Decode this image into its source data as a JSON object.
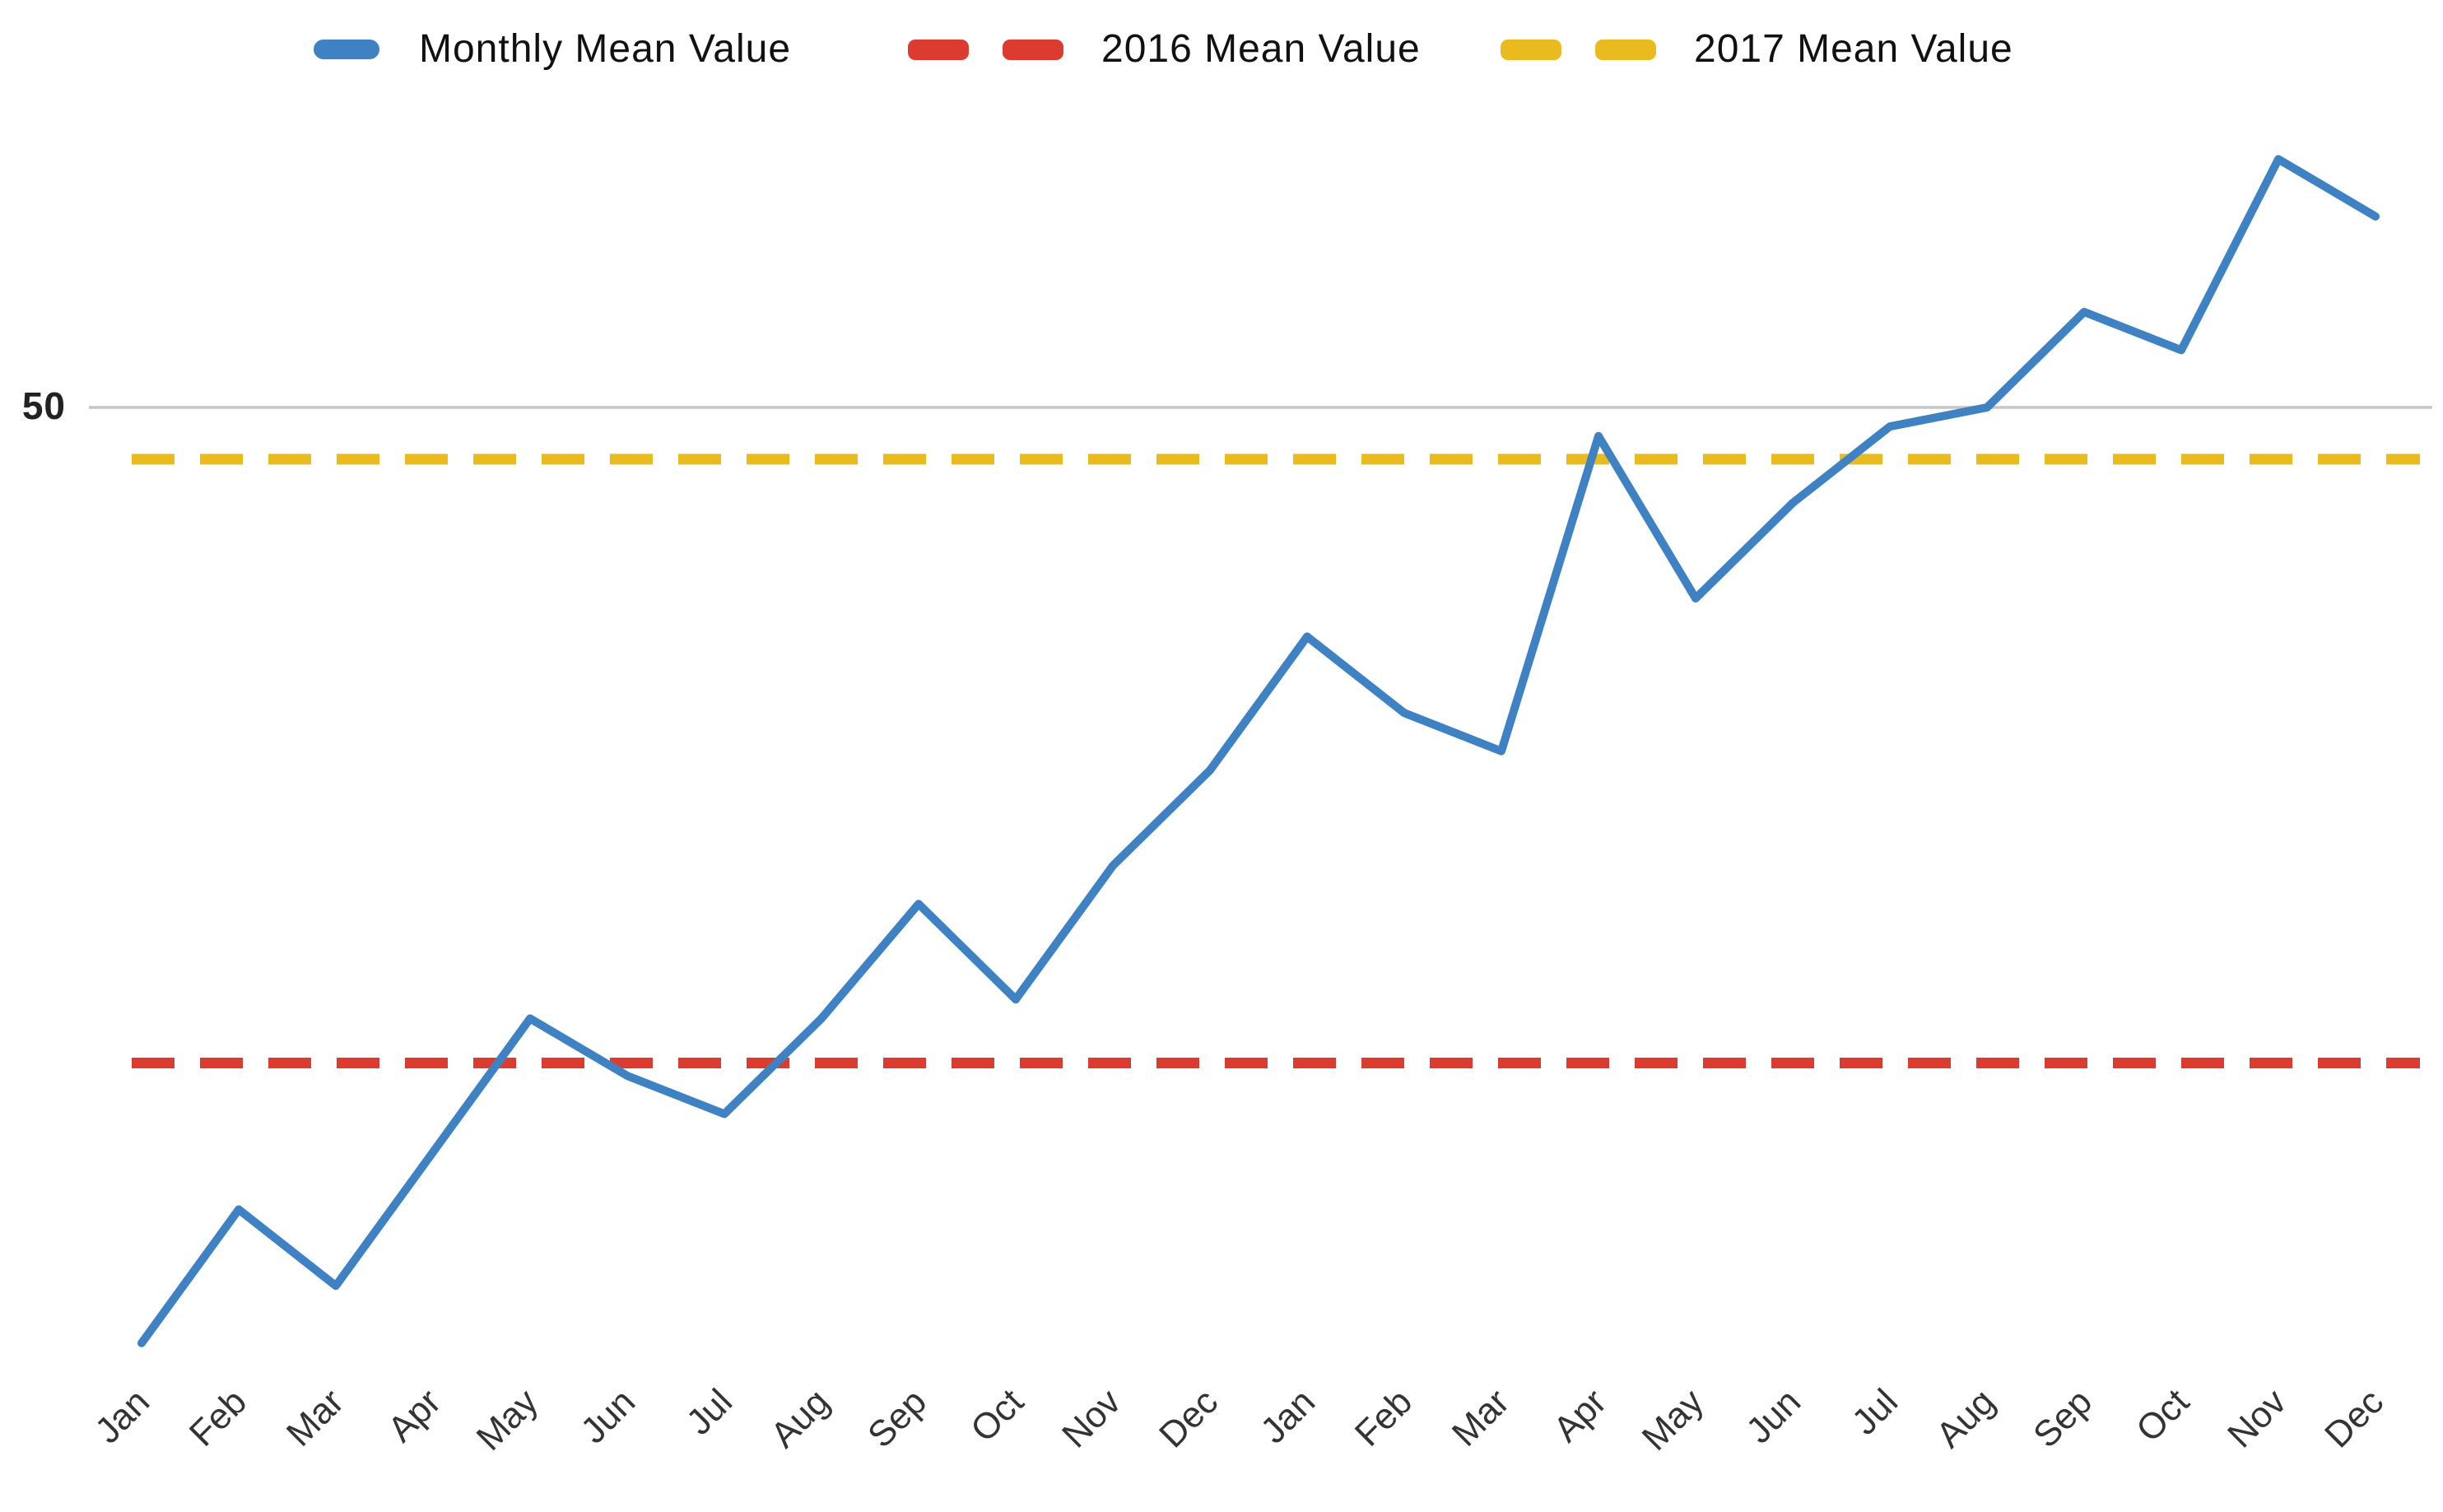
{
  "legend": {
    "items": [
      {
        "label": "Monthly Mean Value",
        "style": "solid",
        "color": "#3f82c4"
      },
      {
        "label": "2016 Mean Value",
        "style": "dashed",
        "color": "#dc3c30"
      },
      {
        "label": "2017 Mean Value",
        "style": "dashed",
        "color": "#e9bb1e"
      }
    ]
  },
  "y_axis": {
    "tick_labels": [
      "50"
    ],
    "gridline_color": "#c6c6c6",
    "label_color": "#222"
  },
  "x_axis": {
    "label_color": "#333",
    "label_rotation_deg": -45
  },
  "chart_data": {
    "type": "line",
    "title": "",
    "xlabel": "",
    "ylabel": "",
    "categories": [
      "Jan",
      "Feb",
      "Mar",
      "Apr",
      "May",
      "Jun",
      "Jul",
      "Aug",
      "Sep",
      "Oct",
      "Nov",
      "Dec",
      "Jan",
      "Feb",
      "Mar",
      "Apr",
      "May",
      "Jun",
      "Jul",
      "Aug",
      "Sep",
      "Oct",
      "Nov",
      "Dec"
    ],
    "series": [
      {
        "name": "Monthly Mean Value",
        "type": "line",
        "style": "solid",
        "color": "#3f82c4",
        "values": [
          1,
          8,
          4,
          11,
          18,
          15,
          13,
          18,
          24,
          19,
          26,
          31,
          38,
          34,
          32,
          48.5,
          40,
          45,
          49,
          50,
          55,
          53,
          63,
          60
        ]
      },
      {
        "name": "2016 Mean Value",
        "type": "hline",
        "style": "dashed",
        "color": "#dc3c30",
        "value": 15.67
      },
      {
        "name": "2017 Mean Value",
        "type": "hline",
        "style": "dashed",
        "color": "#e9bb1e",
        "value": 47.29
      }
    ],
    "ylim": [
      0,
      71
    ],
    "y_ticks_shown": [
      50
    ],
    "grid": "single horizontal gridline at 50",
    "legend_position": "top",
    "x_label_rotation": -45
  }
}
